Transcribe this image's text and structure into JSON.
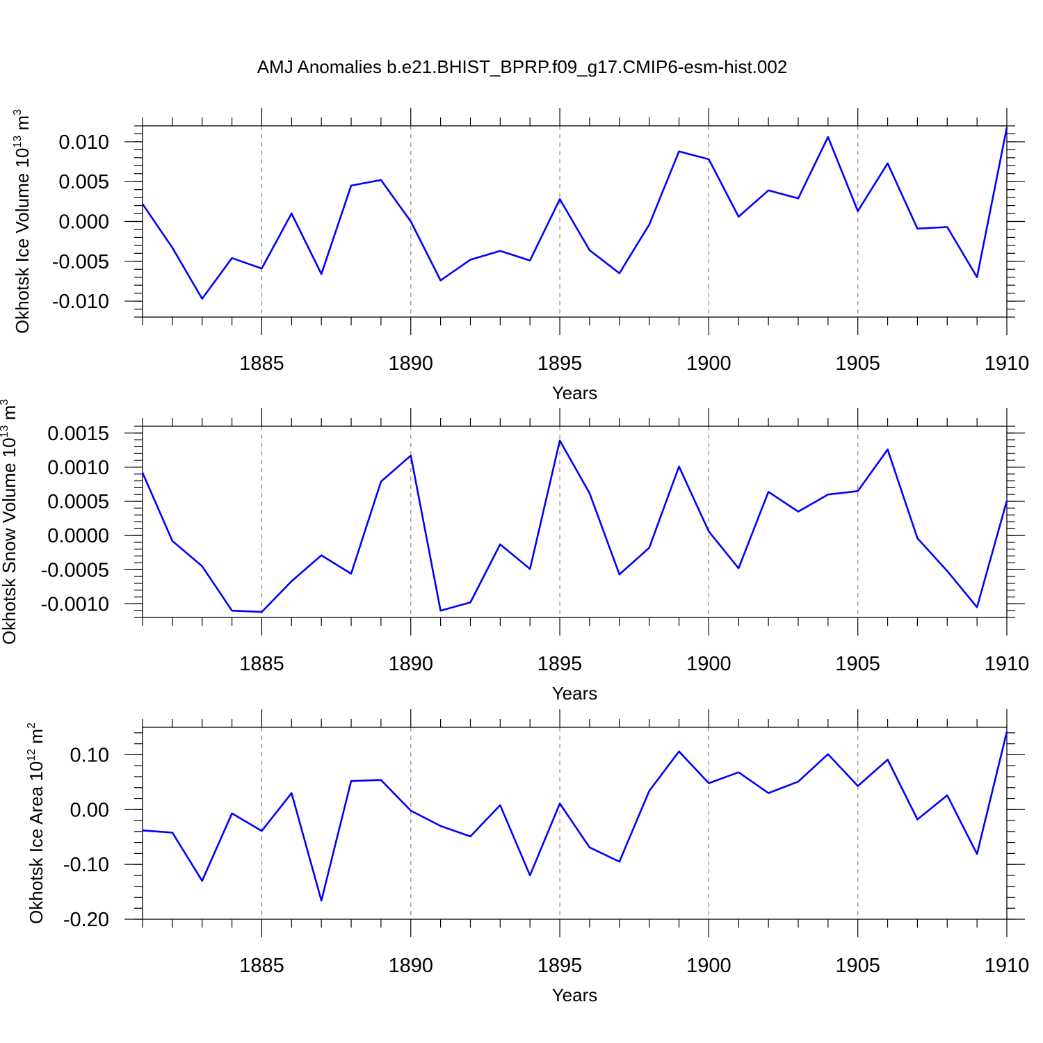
{
  "title": "AMJ Anomalies b.e21.BHIST_BPRP.f09_g17.CMIP6-esm-hist.002",
  "chart_data": [
    {
      "type": "line",
      "name": "ice-volume",
      "ylabel": {
        "text": "Okhotsk Ice Volume 10",
        "sup1": "13",
        "unit": " m",
        "sup2": "3"
      },
      "xlabel": "Years",
      "xlim": [
        1881,
        1910
      ],
      "ylim": [
        -0.012,
        0.012
      ],
      "xticks": [
        1885,
        1890,
        1895,
        1900,
        1905,
        1910
      ],
      "xtick_labels": [
        "1885",
        "1890",
        "1895",
        "1900",
        "1905",
        "1910"
      ],
      "yticks": [
        -0.01,
        -0.005,
        0,
        0.005,
        0.01
      ],
      "ytick_labels": [
        "-0.010",
        "-0.005",
        "0.000",
        "0.005",
        "0.010"
      ],
      "yminor_step": 0.001,
      "series": [
        {
          "name": "Okhotsk Ice Volume",
          "color": "#0000ff",
          "x": [
            1881,
            1882,
            1883,
            1884,
            1885,
            1886,
            1887,
            1888,
            1889,
            1890,
            1891,
            1892,
            1893,
            1894,
            1895,
            1896,
            1897,
            1898,
            1899,
            1900,
            1901,
            1902,
            1903,
            1904,
            1905,
            1906,
            1907,
            1908,
            1909,
            1910
          ],
          "values": [
            0.0022,
            -0.0033,
            -0.0097,
            -0.0046,
            -0.0059,
            0.001,
            -0.0066,
            0.0045,
            0.0052,
            0.0,
            -0.0074,
            -0.0048,
            -0.0037,
            -0.0049,
            0.0028,
            -0.0036,
            -0.0065,
            -0.0004,
            0.0088,
            0.0078,
            0.0006,
            0.0039,
            0.0029,
            0.0106,
            0.0013,
            0.0073,
            -0.0009,
            -0.0007,
            -0.007,
            0.0118
          ]
        }
      ]
    },
    {
      "type": "line",
      "name": "snow-volume",
      "ylabel": {
        "text": "Okhotsk Snow Volume 10",
        "sup1": "13",
        "unit": " m",
        "sup2": "3"
      },
      "xlabel": "Years",
      "xlim": [
        1881,
        1910
      ],
      "ylim": [
        -0.0012,
        0.0016
      ],
      "xticks": [
        1885,
        1890,
        1895,
        1900,
        1905,
        1910
      ],
      "xtick_labels": [
        "1885",
        "1890",
        "1895",
        "1900",
        "1905",
        "1910"
      ],
      "yticks": [
        -0.001,
        -0.0005,
        0,
        0.0005,
        0.001,
        0.0015
      ],
      "ytick_labels": [
        "-0.0010",
        "-0.0005",
        "0.0000",
        "0.0005",
        "0.0010",
        "0.0015"
      ],
      "yminor_step": 0.0001,
      "series": [
        {
          "name": "Okhotsk Snow Volume",
          "color": "#0000ff",
          "x": [
            1881,
            1882,
            1883,
            1884,
            1885,
            1886,
            1887,
            1888,
            1889,
            1890,
            1891,
            1892,
            1893,
            1894,
            1895,
            1896,
            1897,
            1898,
            1899,
            1900,
            1901,
            1902,
            1903,
            1904,
            1905,
            1906,
            1907,
            1908,
            1909,
            1910
          ],
          "values": [
            0.00092,
            -8e-05,
            -0.00045,
            -0.0011,
            -0.00112,
            -0.00067,
            -0.00029,
            -0.00056,
            0.00079,
            0.00117,
            -0.0011,
            -0.00098,
            -0.00013,
            -0.00049,
            0.00139,
            0.00062,
            -0.00057,
            -0.00018,
            0.00101,
            6e-05,
            -0.00048,
            0.00064,
            0.00035,
            0.0006,
            0.00065,
            0.00126,
            -4e-05,
            -0.00052,
            -0.00105,
            0.00051
          ]
        }
      ]
    },
    {
      "type": "line",
      "name": "ice-area",
      "ylabel": {
        "text": "Okhotsk Ice Area 10",
        "sup1": "12",
        "unit": " m",
        "sup2": "2"
      },
      "xlabel": "Years",
      "xlim": [
        1881,
        1910
      ],
      "ylim": [
        -0.2,
        0.15
      ],
      "xticks": [
        1885,
        1890,
        1895,
        1900,
        1905,
        1910
      ],
      "xtick_labels": [
        "1885",
        "1890",
        "1895",
        "1900",
        "1905",
        "1910"
      ],
      "yticks": [
        -0.2,
        -0.1,
        0,
        0.1
      ],
      "ytick_labels": [
        "-0.20",
        "-0.10",
        "0.00",
        "0.10"
      ],
      "yminor_step": 0.02,
      "series": [
        {
          "name": "Okhotsk Ice Area",
          "color": "#0000ff",
          "x": [
            1881,
            1882,
            1883,
            1884,
            1885,
            1886,
            1887,
            1888,
            1889,
            1890,
            1891,
            1892,
            1893,
            1894,
            1895,
            1896,
            1897,
            1898,
            1899,
            1900,
            1901,
            1902,
            1903,
            1904,
            1905,
            1906,
            1907,
            1908,
            1909,
            1910
          ],
          "values": [
            -0.038,
            -0.042,
            -0.13,
            -0.007,
            -0.039,
            0.03,
            -0.166,
            0.052,
            0.054,
            -0.002,
            -0.03,
            -0.049,
            0.008,
            -0.12,
            0.011,
            -0.069,
            -0.095,
            0.034,
            0.106,
            0.048,
            0.068,
            0.03,
            0.051,
            0.101,
            0.043,
            0.091,
            -0.018,
            0.026,
            -0.081,
            0.142
          ]
        }
      ]
    }
  ]
}
